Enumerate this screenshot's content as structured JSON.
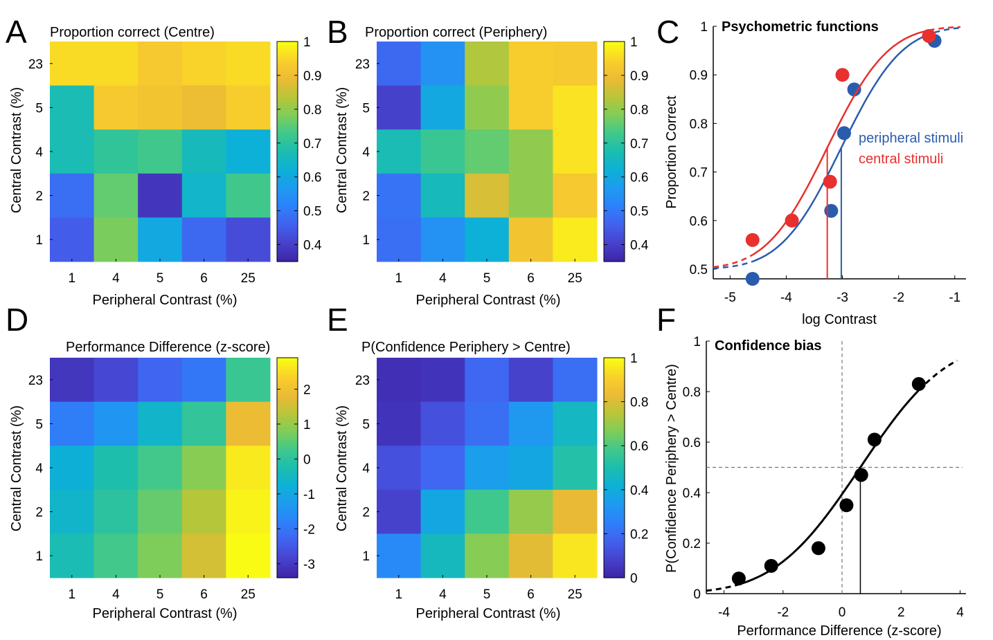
{
  "chart_data": [
    {
      "panel": "A",
      "type": "heatmap",
      "title": "Proportion correct (Centre)",
      "xlabel": "Peripheral Contrast (%)",
      "ylabel": "Central Contrast (%)",
      "x_categories": [
        "1",
        "4",
        "5",
        "6",
        "25"
      ],
      "y_categories": [
        "23",
        "5",
        "4",
        "2",
        "1"
      ],
      "values": [
        [
          0.96,
          0.96,
          0.93,
          0.95,
          0.96
        ],
        [
          0.67,
          0.93,
          0.92,
          0.9,
          0.94
        ],
        [
          0.67,
          0.71,
          0.73,
          0.66,
          0.62
        ],
        [
          0.48,
          0.76,
          0.38,
          0.64,
          0.73
        ],
        [
          0.45,
          0.78,
          0.6,
          0.47,
          0.42
        ]
      ],
      "colorbar": {
        "min": 0.35,
        "max": 1.0,
        "ticks": [
          "0.4",
          "0.5",
          "0.6",
          "0.7",
          "0.8",
          "0.9",
          "1"
        ],
        "tick_values": [
          0.4,
          0.5,
          0.6,
          0.7,
          0.8,
          0.9,
          1.0
        ]
      }
    },
    {
      "panel": "B",
      "type": "heatmap",
      "title": "Proportion correct (Periphery)",
      "xlabel": "Peripheral Contrast (%)",
      "ylabel": "Central Contrast (%)",
      "x_categories": [
        "1",
        "4",
        "5",
        "6",
        "25"
      ],
      "y_categories": [
        "23",
        "5",
        "4",
        "2",
        "1"
      ],
      "values": [
        [
          0.47,
          0.55,
          0.83,
          0.94,
          0.93
        ],
        [
          0.4,
          0.6,
          0.8,
          0.94,
          0.97
        ],
        [
          0.67,
          0.72,
          0.76,
          0.8,
          0.97
        ],
        [
          0.49,
          0.66,
          0.87,
          0.8,
          0.93
        ],
        [
          0.48,
          0.55,
          0.62,
          0.92,
          0.98
        ]
      ],
      "colorbar": {
        "min": 0.35,
        "max": 1.0,
        "ticks": [
          "0.4",
          "0.5",
          "0.6",
          "0.7",
          "0.8",
          "0.9",
          "1"
        ],
        "tick_values": [
          0.4,
          0.5,
          0.6,
          0.7,
          0.8,
          0.9,
          1.0
        ]
      }
    },
    {
      "panel": "C",
      "type": "scatter",
      "title": "Psychometric functions",
      "xlabel": "log Contrast",
      "ylabel": "Proportion Correct",
      "xlim": [
        -5.3,
        -0.8
      ],
      "ylim": [
        0.48,
        1.0
      ],
      "xticks": [
        "-5",
        "-4",
        "-3",
        "-2",
        "-1"
      ],
      "xtick_values": [
        -5,
        -4,
        -3,
        -2,
        -1
      ],
      "yticks": [
        "0.5",
        "0.6",
        "0.7",
        "0.8",
        "0.9",
        "1"
      ],
      "ytick_values": [
        0.5,
        0.6,
        0.7,
        0.8,
        0.9,
        1.0
      ],
      "series": [
        {
          "name": "peripheral stimuli",
          "color": "#2a5cad",
          "points": [
            [
              -4.6,
              0.48
            ],
            [
              -3.2,
              0.62
            ],
            [
              -2.97,
              0.78
            ],
            [
              -2.79,
              0.87
            ],
            [
              -1.36,
              0.97
            ]
          ],
          "threshold": -3.02,
          "fit": {
            "mu": -3.02,
            "sigma": 0.85
          },
          "solid_range": [
            -4.6,
            -1.36
          ]
        },
        {
          "name": "central stimuli",
          "color": "#e8302e",
          "points": [
            [
              -4.6,
              0.56
            ],
            [
              -3.9,
              0.6
            ],
            [
              -3.22,
              0.68
            ],
            [
              -3.0,
              0.9
            ],
            [
              -1.46,
              0.98
            ]
          ],
          "threshold": -3.27,
          "fit": {
            "mu": -3.27,
            "sigma": 0.85
          },
          "solid_range": [
            -4.6,
            -1.46
          ]
        }
      ]
    },
    {
      "panel": "D",
      "type": "heatmap",
      "title": "Performance Difference (z-score)",
      "xlabel": "Peripheral Contrast (%)",
      "ylabel": "Central Contrast (%)",
      "x_categories": [
        "1",
        "4",
        "5",
        "6",
        "25"
      ],
      "y_categories": [
        "23",
        "5",
        "4",
        "2",
        "1"
      ],
      "values": [
        [
          -3.1,
          -2.8,
          -2.3,
          -2.0,
          0.2
        ],
        [
          -1.9,
          -1.4,
          -0.6,
          0.1,
          1.9
        ],
        [
          -0.8,
          -0.2,
          0.3,
          0.9,
          2.7
        ],
        [
          -0.6,
          0.0,
          0.6,
          1.3,
          2.8
        ],
        [
          -0.3,
          0.3,
          0.8,
          1.6,
          2.9
        ]
      ],
      "colorbar": {
        "min": -3.4,
        "max": 2.9,
        "ticks": [
          "-3",
          "-2",
          "-1",
          "0",
          "1",
          "2"
        ],
        "tick_values": [
          -3,
          -2,
          -1,
          0,
          1,
          2
        ]
      }
    },
    {
      "panel": "E",
      "type": "heatmap",
      "title": "P(Confidence Periphery > Centre)",
      "xlabel": "Peripheral Contrast (%)",
      "ylabel": "Central Contrast (%)",
      "x_categories": [
        "1",
        "4",
        "5",
        "6",
        "25"
      ],
      "y_categories": [
        "23",
        "5",
        "4",
        "2",
        "1"
      ],
      "values": [
        [
          0.03,
          0.04,
          0.18,
          0.08,
          0.2
        ],
        [
          0.04,
          0.12,
          0.2,
          0.33,
          0.46
        ],
        [
          0.12,
          0.18,
          0.35,
          0.38,
          0.52
        ],
        [
          0.08,
          0.38,
          0.58,
          0.7,
          0.83
        ],
        [
          0.28,
          0.47,
          0.68,
          0.82,
          0.96
        ]
      ],
      "colorbar": {
        "min": 0.0,
        "max": 1.0,
        "ticks": [
          "0",
          "0.2",
          "0.4",
          "0.6",
          "0.8",
          "1"
        ],
        "tick_values": [
          0,
          0.2,
          0.4,
          0.6,
          0.8,
          1.0
        ]
      }
    },
    {
      "panel": "F",
      "type": "scatter",
      "title": "Confidence bias",
      "xlabel": "Performance Difference (z-score)",
      "ylabel": "P(Confidence Periphery > Centre)",
      "xlim": [
        -4.6,
        4.2
      ],
      "ylim": [
        0,
        1.0
      ],
      "xticks": [
        "-4",
        "-2",
        "0",
        "2",
        "4"
      ],
      "xtick_values": [
        -4,
        -2,
        0,
        2,
        4
      ],
      "yticks": [
        "0",
        "0.2",
        "0.4",
        "0.6",
        "0.8",
        "1"
      ],
      "ytick_values": [
        0,
        0.2,
        0.4,
        0.6,
        0.8,
        1.0
      ],
      "points": [
        [
          -3.5,
          0.06
        ],
        [
          -2.4,
          0.11
        ],
        [
          -0.8,
          0.18
        ],
        [
          0.15,
          0.35
        ],
        [
          0.65,
          0.47
        ],
        [
          1.1,
          0.61
        ],
        [
          2.6,
          0.83
        ]
      ],
      "reference": {
        "x": 0,
        "y": 0.5
      },
      "pse": 0.62,
      "fit": {
        "mu": 0.62,
        "sigma": 2.3
      },
      "solid_range": [
        -3.5,
        2.6
      ],
      "color": "#000000"
    }
  ],
  "colormap": [
    "#3e26a8",
    "#4743ce",
    "#4262ef",
    "#2d81fa",
    "#1e9af0",
    "#0db0d6",
    "#1bbdb0",
    "#3fc88d",
    "#7ecd5a",
    "#b8c639",
    "#ebba35",
    "#f9cf2c",
    "#f9fb15"
  ]
}
